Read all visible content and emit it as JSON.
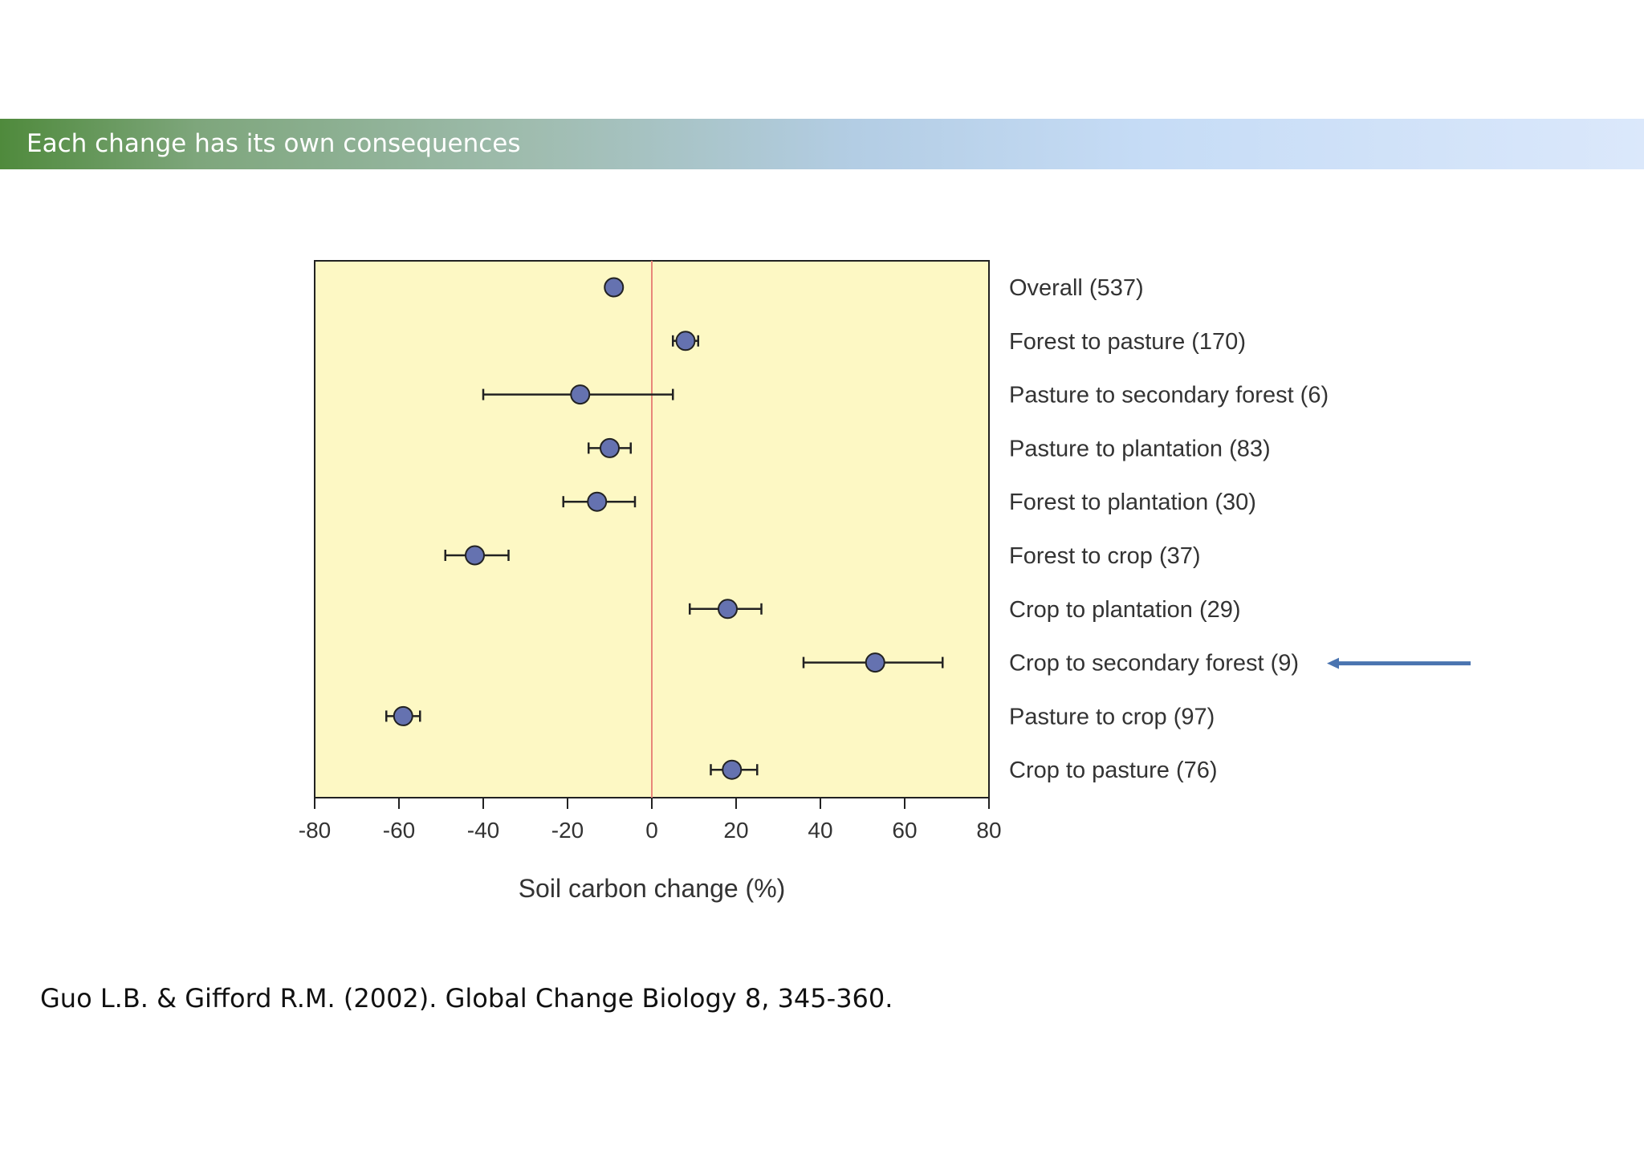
{
  "slide": {
    "title": "Each change has its own consequences",
    "citation": "Guo L.B. & Gifford R.M. (2002). Global Change Biology 8, 345-360."
  },
  "colors": {
    "plot_background": "#fdf8c4",
    "marker_fill": "#6572b0",
    "zero_line": "#e8877a",
    "arrow": "#4a74b0",
    "header_start": "#4f8a3c",
    "header_end": "#dbe8fb"
  },
  "chart_data": {
    "type": "scatter",
    "orientation": "horizontal",
    "xlabel": "Soil carbon change (%)",
    "xlim": [
      -80,
      80
    ],
    "xticks": [
      -80,
      -60,
      -40,
      -20,
      0,
      20,
      40,
      60,
      80
    ],
    "reference_line_x": 0,
    "categories": [
      "Overall (537)",
      "Forest to pasture (170)",
      "Pasture to secondary forest (6)",
      "Pasture to plantation (83)",
      "Forest to plantation (30)",
      "Forest to crop (37)",
      "Crop to plantation (29)",
      "Crop to secondary forest (9)",
      "Pasture to crop (97)",
      "Crop to pasture (76)"
    ],
    "values": [
      -9,
      8,
      -17,
      -10,
      -13,
      -42,
      18,
      53,
      -59,
      19
    ],
    "ci_low": [
      -9,
      5,
      -40,
      -15,
      -21,
      -49,
      9,
      36,
      -63,
      14
    ],
    "ci_high": [
      -9,
      11,
      5,
      -5,
      -4,
      -34,
      26,
      69,
      -55,
      25
    ],
    "highlighted_category": "Crop to secondary forest (9)",
    "grid": false,
    "legend": "none"
  }
}
